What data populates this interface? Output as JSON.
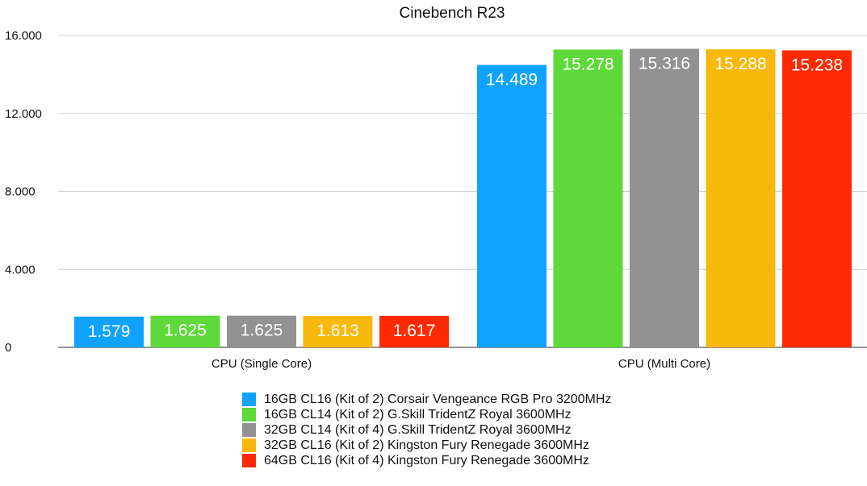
{
  "chart_data": {
    "type": "bar",
    "title": "Cinebench R23",
    "categories": [
      "CPU (Single Core)",
      "CPU (Multi Core)"
    ],
    "ylim": [
      0,
      16000
    ],
    "yticks": [
      {
        "value": 0,
        "label": "0"
      },
      {
        "value": 4000,
        "label": "4.000"
      },
      {
        "value": 8000,
        "label": "8.000"
      },
      {
        "value": 12000,
        "label": "12.000"
      },
      {
        "value": 16000,
        "label": "16.000"
      }
    ],
    "grid": true,
    "legend_position": "bottom",
    "series": [
      {
        "name": "16GB CL16 (Kit of 2) Corsair Vengeance RGB Pro 3200MHz",
        "color": "#0fa3ff",
        "values": [
          1579,
          14489
        ],
        "labels": [
          "1.579",
          "14.489"
        ]
      },
      {
        "name": "16GB CL14 (Kit of 2) G.Skill TridentZ Royal 3600MHz",
        "color": "#5fd83a",
        "values": [
          1625,
          15278
        ],
        "labels": [
          "1.625",
          "15.278"
        ]
      },
      {
        "name": "32GB CL14 (Kit of 4) G.Skill TridentZ Royal 3600MHz",
        "color": "#929292",
        "values": [
          1625,
          15316
        ],
        "labels": [
          "1.625",
          "15.316"
        ]
      },
      {
        "name": "32GB CL16 (Kit of 2) Kingston Fury Renegade 3600MHz",
        "color": "#f8b90c",
        "values": [
          1613,
          15288
        ],
        "labels": [
          "1.613",
          "15.288"
        ]
      },
      {
        "name": "64GB CL16 (Kit of 4) Kingston Fury Renegade 3600MHz",
        "color": "#fe2a03",
        "values": [
          1617,
          15238
        ],
        "labels": [
          "1.617",
          "15.238"
        ]
      }
    ]
  }
}
